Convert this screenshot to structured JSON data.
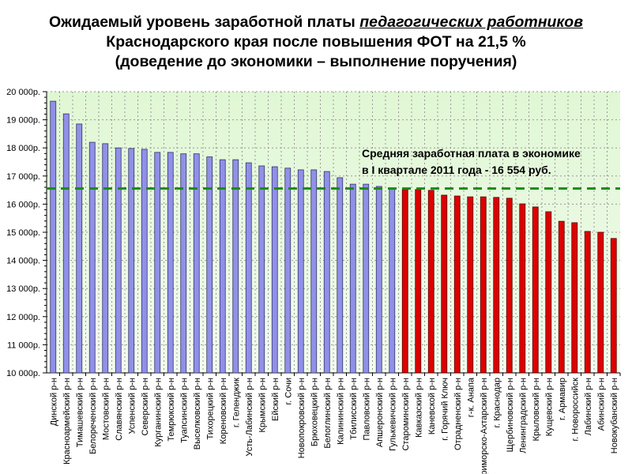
{
  "title": {
    "line1_a": "Ожидаемый уровень заработной платы ",
    "line1_b": "педагогических работников",
    "line2": "Краснодарского края после повышения  ФОТ  на 21,5 %",
    "line3": "(доведение до экономики – выполнение поручения)"
  },
  "annotation": {
    "line1": "Средняя заработная плата в экономике",
    "line2": "в I квартале 2011 года - 16 554 руб."
  },
  "colors": {
    "above": "#9090e8",
    "below": "#dd0000",
    "reference": "#1a8a1a",
    "plot_bg": "#e6f8dc"
  },
  "chart_data": {
    "type": "bar",
    "title": "Ожидаемый уровень заработной платы педагогических работников Краснодарского края после повышения ФОТ на 21,5 %",
    "xlabel": "",
    "ylabel": "",
    "ylim": [
      10000,
      20000
    ],
    "yticks": [
      10000,
      11000,
      12000,
      13000,
      14000,
      15000,
      16000,
      17000,
      18000,
      19000,
      20000
    ],
    "ytick_labels": [
      "10 000р.",
      "11 000р.",
      "12 000р.",
      "13 000р.",
      "14 000р.",
      "15 000р.",
      "16 000р.",
      "17 000р.",
      "18 000р.",
      "19 000р.",
      "20 000р."
    ],
    "grid": true,
    "reference_line": {
      "value": 16554,
      "label": "Средняя заработная плата в экономике в I квартале 2011 года - 16 554 руб."
    },
    "categories": [
      "Динской р-н",
      "Красноармейский р-н",
      "Тимашевский р-н",
      "Белореченский р-н",
      "Мостовский р-н",
      "Славянский р-н",
      "Успенский р-н",
      "Северский р-н",
      "Курганинский р-н",
      "Темрюкский р-н",
      "Туапсинский р-н",
      "Выселковский р-н",
      "Тихорецкий р-н",
      "Кореновский р-н",
      "г. Геленджик",
      "Усть-Лабинский р-н",
      "Крымский р-н",
      "Ейский р-н",
      "г. Сочи",
      "Новопокровский р-н",
      "Брюховецкий р-н",
      "Белоглинский р-н",
      "Калининский р-н",
      "Тбилисский р-н",
      "Павловский р-н",
      "Апшеронский р-н",
      "Гулькевичский р-н",
      "Староминский р-н",
      "Кавказский р-н",
      "Каневской р-н",
      "г. Горячий Ключ",
      "Отрадненский р-н",
      "г-к. Анапа",
      "Приморско-Ахтарский р-н",
      "г. Краснодар",
      "Щербиновский р-н",
      "Ленинградский р-н",
      "Крыловский р-н",
      "Кущевский р-н",
      "г. Армавир",
      "г. Новороссийск",
      "Лабинский р-н",
      "Абинский р-н",
      "Новокубанский р-н"
    ],
    "values": [
      19660,
      19210,
      18850,
      18200,
      18150,
      18000,
      17980,
      17950,
      17840,
      17840,
      17790,
      17790,
      17680,
      17580,
      17580,
      17470,
      17360,
      17330,
      17280,
      17220,
      17220,
      17160,
      16940,
      16710,
      16710,
      16630,
      16570,
      16520,
      16520,
      16490,
      16320,
      16290,
      16260,
      16260,
      16240,
      16210,
      16010,
      15900,
      15730,
      15390,
      15340,
      15030,
      15000,
      14780
    ]
  }
}
